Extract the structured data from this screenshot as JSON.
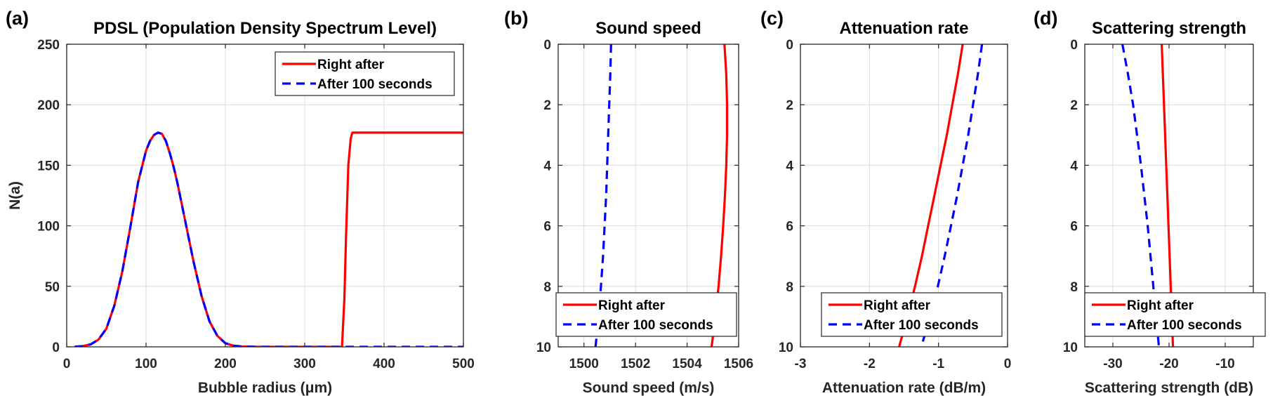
{
  "chart_data": [
    {
      "panel_label": "(a)",
      "type": "line",
      "title": "PDSL (Population Density Spectrum Level)",
      "xlabel": "Bubble radius (μm)",
      "ylabel": "N(a)",
      "xlim": [
        0,
        500
      ],
      "ylim": [
        0,
        250
      ],
      "xticks": [
        0,
        100,
        200,
        300,
        400,
        500
      ],
      "yticks": [
        0,
        50,
        100,
        150,
        200,
        250
      ],
      "y_reversed": false,
      "grid": true,
      "legend_position": "top-right",
      "series": [
        {
          "name": "Right after",
          "color": "#ff0000",
          "style": "solid",
          "x": [
            10,
            20,
            30,
            40,
            50,
            60,
            70,
            80,
            90,
            100,
            105,
            110,
            115,
            120,
            125,
            130,
            135,
            140,
            150,
            160,
            170,
            180,
            190,
            200,
            210,
            220,
            240,
            280,
            320,
            347,
            350,
            352,
            355,
            358,
            360,
            380,
            420,
            460,
            500
          ],
          "y": [
            0.1,
            0.6,
            2,
            6,
            15,
            34,
            62,
            98,
            136,
            162,
            170,
            175,
            177,
            176,
            170,
            160,
            148,
            134,
            102,
            70,
            42,
            21,
            9,
            3,
            1,
            0.3,
            0,
            0,
            0,
            0,
            40,
            90,
            150,
            172,
            177,
            177,
            177,
            177,
            177
          ]
        },
        {
          "name": "After 100 seconds",
          "color": "#0000ff",
          "style": "dashed",
          "x": [
            10,
            20,
            30,
            40,
            50,
            60,
            70,
            80,
            90,
            100,
            105,
            110,
            115,
            120,
            125,
            130,
            135,
            140,
            150,
            160,
            170,
            180,
            190,
            200,
            210,
            220,
            240,
            280,
            320,
            360,
            400,
            450,
            500
          ],
          "y": [
            0.1,
            0.6,
            2,
            6,
            15,
            34,
            62,
            98,
            136,
            162,
            170,
            175,
            177,
            176,
            170,
            160,
            148,
            134,
            102,
            70,
            42,
            21,
            9,
            3,
            1,
            0.3,
            0,
            0,
            0,
            0,
            0,
            0,
            0
          ]
        }
      ]
    },
    {
      "panel_label": "(b)",
      "type": "line",
      "title": "Sound speed",
      "xlabel": "Sound speed (m/s)",
      "ylabel": "",
      "xlim": [
        1499,
        1506
      ],
      "ylim": [
        0,
        10
      ],
      "xticks": [
        1500,
        1502,
        1504,
        1506
      ],
      "yticks": [
        0,
        2,
        4,
        6,
        8,
        10
      ],
      "y_reversed": true,
      "grid": true,
      "legend_position": "bottom-right",
      "series": [
        {
          "name": "Right after",
          "color": "#ff0000",
          "style": "solid",
          "x": [
            1505.45,
            1505.52,
            1505.55,
            1505.55,
            1505.52,
            1505.47,
            1505.4,
            1505.32,
            1505.22,
            1505.1,
            1504.95
          ],
          "y": [
            0,
            1,
            2,
            3,
            4,
            5,
            6,
            7,
            8,
            9,
            10
          ]
        },
        {
          "name": "After 100 seconds",
          "color": "#0000ff",
          "style": "dashed",
          "x": [
            1501.05,
            1501.02,
            1500.98,
            1500.94,
            1500.9,
            1500.86,
            1500.8,
            1500.74,
            1500.66,
            1500.57,
            1500.45
          ],
          "y": [
            0,
            1,
            2,
            3,
            4,
            5,
            6,
            7,
            8,
            9,
            10
          ]
        }
      ]
    },
    {
      "panel_label": "(c)",
      "type": "line",
      "title": "Attenuation rate",
      "xlabel": "Attenuation rate (dB/m)",
      "ylabel": "",
      "xlim": [
        -3,
        0
      ],
      "ylim": [
        0,
        10
      ],
      "xticks": [
        -3,
        -2,
        -1,
        0
      ],
      "yticks": [
        0,
        2,
        4,
        6,
        8,
        10
      ],
      "y_reversed": true,
      "grid": true,
      "legend_position": "bottom-right",
      "series": [
        {
          "name": "Right after",
          "color": "#ff0000",
          "style": "solid",
          "x": [
            -0.65,
            -0.72,
            -0.8,
            -0.88,
            -0.97,
            -1.06,
            -1.15,
            -1.24,
            -1.34,
            -1.45,
            -1.57
          ],
          "y": [
            0,
            1,
            2,
            3,
            4,
            5,
            6,
            7,
            8,
            9,
            10
          ]
        },
        {
          "name": "After 100 seconds",
          "color": "#0000ff",
          "style": "dashed",
          "x": [
            -0.37,
            -0.43,
            -0.5,
            -0.57,
            -0.65,
            -0.73,
            -0.82,
            -0.91,
            -1.01,
            -1.12,
            -1.25
          ],
          "y": [
            0,
            1,
            2,
            3,
            4,
            5,
            6,
            7,
            8,
            9,
            10
          ]
        }
      ]
    },
    {
      "panel_label": "(d)",
      "type": "line",
      "title": "Scattering strength",
      "xlabel": "Scattering strength (dB)",
      "ylabel": "",
      "xlim": [
        -35,
        -5
      ],
      "ylim": [
        0,
        10
      ],
      "xticks": [
        -30,
        -20,
        -10
      ],
      "yticks": [
        0,
        2,
        4,
        6,
        8,
        10
      ],
      "y_reversed": true,
      "grid": true,
      "legend_position": "bottom-right",
      "series": [
        {
          "name": "Right after",
          "color": "#ff0000",
          "style": "solid",
          "x": [
            -21.3,
            -21.1,
            -20.9,
            -20.7,
            -20.5,
            -20.3,
            -20.1,
            -19.9,
            -19.7,
            -19.5,
            -19.3
          ],
          "y": [
            0,
            1,
            2,
            3,
            4,
            5,
            6,
            7,
            8,
            9,
            10
          ]
        },
        {
          "name": "After 100 seconds",
          "color": "#0000ff",
          "style": "dashed",
          "x": [
            -28.3,
            -27.3,
            -26.4,
            -25.7,
            -25.0,
            -24.4,
            -23.8,
            -23.3,
            -22.8,
            -22.3,
            -21.8
          ],
          "y": [
            0,
            1,
            2,
            3,
            4,
            5,
            6,
            7,
            8,
            9,
            10
          ]
        }
      ]
    }
  ]
}
